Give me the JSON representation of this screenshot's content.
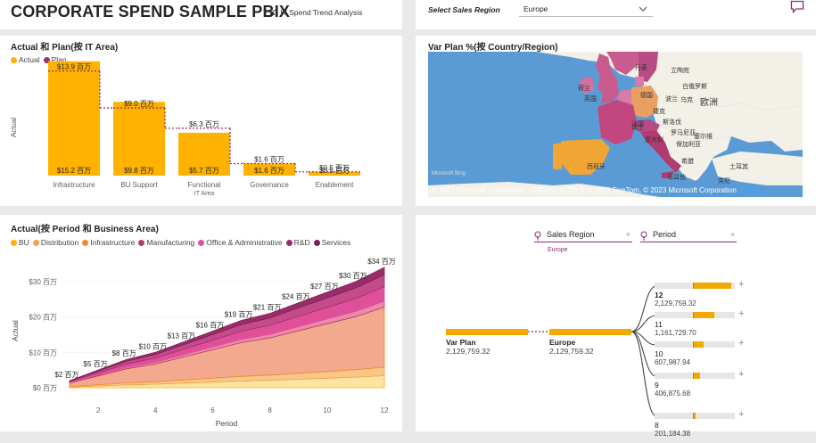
{
  "header": {
    "title": "CORPORATE SPEND SAMPLE PBIX",
    "subtitle": "YTD IT Spend Trend Analysis",
    "region_label": "Select Sales Region",
    "region_value": "Europe"
  },
  "colors": {
    "actual": "#ffb300",
    "plan": "#9c2f6e",
    "accent": "#8b2b7b",
    "map_water": "#5b9bd5"
  },
  "chart1": {
    "title": "Actual 和 Plan(按 IT Area)",
    "legend": [
      "Actual",
      "Plan"
    ],
    "ylabel": "Actual"
  },
  "chart2": {
    "title": "Actual(按 Period 和 Business Area)",
    "legend": [
      "BU",
      "Distribution",
      "Infrastructure",
      "Manufacturing",
      "Office & Administrative",
      "R&D",
      "Services"
    ],
    "legend_colors": [
      "#ffb300",
      "#f2a14a",
      "#f08a28",
      "#b33a70",
      "#e0509a",
      "#9b2c6a",
      "#7a1f55"
    ]
  },
  "map": {
    "title": "Var Plan %(按 Country/Region)",
    "labels": [
      "丹麦",
      "立陶宛",
      "白俄罗斯",
      "荷兰",
      "英国",
      "德国",
      "波兰",
      "欧洲",
      "乌克",
      "捷克",
      "法国",
      "斯洛伐",
      "罗马尼亚",
      "瑞士",
      "意大利",
      "保加利亚",
      "塞尔维",
      "西班牙",
      "希腊",
      "土耳其",
      "马耳他",
      "突尼"
    ],
    "copyright": "© 2023 Microsoft Corporation - GS(2021)1731号  © 2023 TomTom, © 2023 Microsoft Corporation",
    "terms": "Terms",
    "bing": "Microsoft Bing"
  },
  "decomp": {
    "filter1": "Sales Region",
    "filter1_value": "Europe",
    "filter2": "Period",
    "root_label": "Var Plan",
    "root_value": "2,129,759.32",
    "node_label": "Europe",
    "node_value": "2,129,759.32",
    "items": [
      {
        "label": "12",
        "value": "2,129,759.32",
        "fill": 0.92
      },
      {
        "label": "11",
        "value": "1,161,729.70",
        "fill": 0.5
      },
      {
        "label": "10",
        "value": "607,987.94",
        "fill": 0.26
      },
      {
        "label": "9",
        "value": "406,875.68",
        "fill": 0.17
      },
      {
        "label": "8",
        "value": "201,184.38",
        "fill": 0.06
      }
    ]
  },
  "chart_data": [
    {
      "type": "bar",
      "title": "Actual 和 Plan(按 IT Area)",
      "categories": [
        "Infrastructure",
        "BU Support",
        "Functional IT Area",
        "Governance",
        "Enablement"
      ],
      "category_lines": [
        [
          "Infrastructure"
        ],
        [
          "BU Support"
        ],
        [
          "Functional",
          "IT Area"
        ],
        [
          "Governance"
        ],
        [
          "Enablement"
        ]
      ],
      "series": [
        {
          "name": "Actual",
          "values": [
            15.2,
            9.8,
            5.7,
            1.6,
            0.5
          ],
          "labels": [
            "$15.2 百万",
            "$9.8 百万",
            "$5.7 百万",
            "$1.6 百万",
            "$0.5 百万"
          ]
        },
        {
          "name": "Plan",
          "values": [
            13.9,
            9.0,
            6.3,
            1.6,
            0.5
          ],
          "labels": [
            "$13.9 百万",
            "$9.0 百万",
            "$6.3 百万",
            "$1.6 百万",
            "$0.5 百万"
          ]
        }
      ],
      "ylabel": "Actual",
      "ylim": [
        0,
        16
      ]
    },
    {
      "type": "area",
      "title": "Actual(按 Period 和 Business Area)",
      "x": [
        1,
        2,
        3,
        4,
        5,
        6,
        7,
        8,
        9,
        10,
        11,
        12
      ],
      "totals": [
        2,
        5,
        8,
        10,
        13,
        16,
        19,
        21,
        24,
        27,
        30,
        34
      ],
      "total_labels": [
        "$2 百万",
        "$5 百万",
        "$8 百万",
        "$10 百万",
        "$13 百万",
        "$16 百万",
        "$19 百万",
        "$21 百万",
        "$24 百万",
        "$27 百万",
        "$30 百万",
        "$34 百万"
      ],
      "series_share": [
        {
          "name": "BU",
          "share": 0.1
        },
        {
          "name": "Distribution",
          "share": 0.07
        },
        {
          "name": "Infrastructure",
          "share": 0.5
        },
        {
          "name": "Manufacturing",
          "share": 0.05
        },
        {
          "name": "Office & Administrative",
          "share": 0.12
        },
        {
          "name": "R&D",
          "share": 0.1
        },
        {
          "name": "Services",
          "share": 0.06
        }
      ],
      "xlabel": "Period",
      "ylabel": "Actual",
      "xticks": [
        2,
        4,
        6,
        8,
        10,
        12
      ],
      "yticks": [
        0,
        10,
        20,
        30
      ],
      "ytick_labels": [
        "$0 百万",
        "$10 百万",
        "$20 百万",
        "$30 百万"
      ],
      "ylim": [
        0,
        35
      ]
    }
  ]
}
